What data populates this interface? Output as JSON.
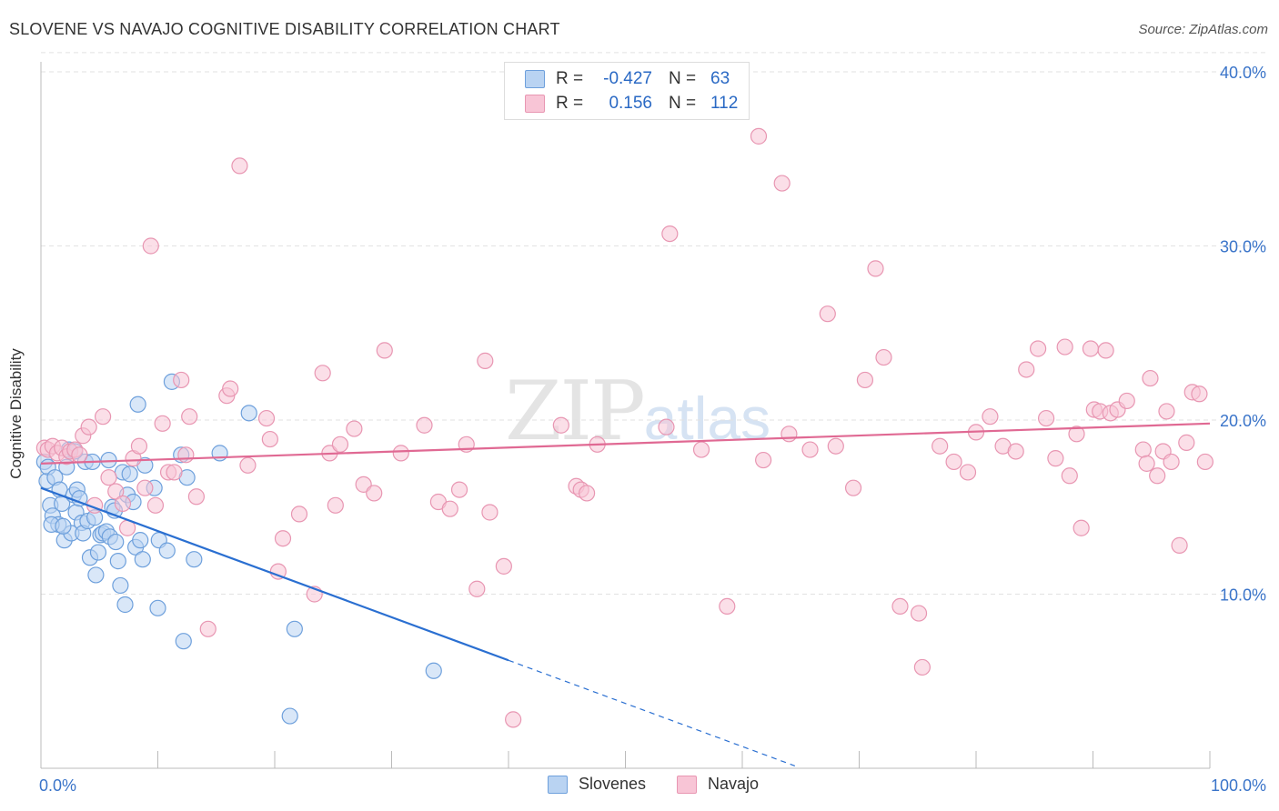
{
  "title": "SLOVENE VS NAVAJO COGNITIVE DISABILITY CORRELATION CHART",
  "source": "Source: ZipAtlas.com",
  "watermark": {
    "zip": "ZIP",
    "atlas": "atlas"
  },
  "legend": {
    "rows": [
      {
        "r_label": "R =",
        "r_value": "-0.427",
        "n_label": "N =",
        "n_value": "63"
      },
      {
        "r_label": "R =",
        "r_value": "0.156",
        "n_label": "N =",
        "n_value": "112"
      }
    ]
  },
  "bottom_legend": [
    "Slovenes",
    "Navajo"
  ],
  "colors": {
    "slovenes_fill": "#b9d3f2",
    "slovenes_stroke": "#6ea0dc",
    "slovenes_line": "#2a6fd1",
    "navajo_fill": "#f8c5d6",
    "navajo_stroke": "#e896b2",
    "navajo_line": "#e06993",
    "tick_label": "#3a74c9",
    "grid": "#e2e2e2"
  },
  "chart_data": {
    "type": "scatter",
    "title": "SLOVENE VS NAVAJO COGNITIVE DISABILITY CORRELATION CHART",
    "xlabel": "",
    "ylabel": "Cognitive Disability",
    "xlim": [
      0,
      100
    ],
    "ylim": [
      0,
      42
    ],
    "x_tick_labels": [
      "0.0%",
      "100.0%"
    ],
    "y_ticks": [
      10,
      20,
      30,
      40
    ],
    "y_tick_labels": [
      "10.0%",
      "20.0%",
      "30.0%",
      "40.0%"
    ],
    "series": [
      {
        "name": "Slovenes",
        "r": -0.427,
        "n": 63,
        "trend": {
          "x0": 0,
          "y0": 16.1,
          "x1": 40,
          "y1": 6.2,
          "dash_to_x": 64.5
        },
        "points": [
          [
            0.3,
            17.6
          ],
          [
            0.5,
            16.5
          ],
          [
            0.6,
            17.3
          ],
          [
            0.8,
            15.1
          ],
          [
            1.0,
            14.5
          ],
          [
            1.2,
            16.7
          ],
          [
            1.5,
            14.0
          ],
          [
            1.6,
            16.0
          ],
          [
            1.8,
            15.2
          ],
          [
            2.0,
            13.1
          ],
          [
            2.2,
            17.3
          ],
          [
            2.4,
            18.3
          ],
          [
            2.6,
            13.5
          ],
          [
            2.8,
            15.7
          ],
          [
            3.0,
            14.7
          ],
          [
            3.1,
            16.0
          ],
          [
            3.3,
            15.5
          ],
          [
            3.5,
            14.1
          ],
          [
            3.6,
            13.5
          ],
          [
            3.8,
            17.6
          ],
          [
            4.0,
            14.2
          ],
          [
            4.2,
            12.1
          ],
          [
            4.4,
            17.6
          ],
          [
            4.6,
            14.4
          ],
          [
            4.7,
            11.1
          ],
          [
            4.9,
            12.4
          ],
          [
            5.1,
            13.4
          ],
          [
            5.3,
            13.5
          ],
          [
            5.6,
            13.6
          ],
          [
            5.8,
            17.7
          ],
          [
            5.9,
            13.3
          ],
          [
            6.1,
            15.0
          ],
          [
            6.3,
            14.8
          ],
          [
            6.4,
            13.0
          ],
          [
            6.6,
            11.9
          ],
          [
            6.8,
            10.5
          ],
          [
            7.0,
            17.0
          ],
          [
            7.2,
            9.4
          ],
          [
            7.4,
            15.7
          ],
          [
            7.6,
            16.9
          ],
          [
            7.9,
            15.3
          ],
          [
            8.1,
            12.7
          ],
          [
            8.3,
            20.9
          ],
          [
            8.5,
            13.1
          ],
          [
            8.7,
            12.0
          ],
          [
            8.9,
            17.4
          ],
          [
            9.7,
            16.1
          ],
          [
            10.0,
            9.2
          ],
          [
            10.1,
            13.1
          ],
          [
            10.8,
            12.5
          ],
          [
            11.2,
            22.2
          ],
          [
            12.0,
            18.0
          ],
          [
            12.2,
            7.3
          ],
          [
            12.5,
            16.7
          ],
          [
            13.1,
            12.0
          ],
          [
            15.3,
            18.1
          ],
          [
            17.8,
            20.4
          ],
          [
            21.3,
            3.0
          ],
          [
            21.7,
            8.0
          ],
          [
            33.6,
            5.6
          ],
          [
            0.9,
            14.0
          ],
          [
            1.9,
            13.9
          ],
          [
            2.9,
            18.2
          ]
        ]
      },
      {
        "name": "Navajo",
        "r": 0.156,
        "n": 112,
        "trend": {
          "x0": 0,
          "y0": 17.5,
          "x1": 100,
          "y1": 19.8
        },
        "points": [
          [
            0.3,
            18.4
          ],
          [
            0.6,
            18.3
          ],
          [
            1.0,
            18.5
          ],
          [
            1.4,
            18.1
          ],
          [
            1.8,
            18.4
          ],
          [
            2.2,
            17.9
          ],
          [
            2.5,
            18.2
          ],
          [
            2.9,
            18.3
          ],
          [
            3.3,
            18.0
          ],
          [
            3.6,
            19.1
          ],
          [
            4.1,
            19.6
          ],
          [
            4.6,
            15.1
          ],
          [
            5.3,
            20.2
          ],
          [
            5.8,
            16.7
          ],
          [
            6.4,
            15.9
          ],
          [
            7.0,
            15.2
          ],
          [
            7.4,
            13.8
          ],
          [
            7.9,
            17.8
          ],
          [
            8.4,
            18.5
          ],
          [
            8.9,
            16.1
          ],
          [
            9.4,
            30.0
          ],
          [
            9.8,
            15.1
          ],
          [
            10.4,
            19.8
          ],
          [
            10.9,
            17.0
          ],
          [
            11.4,
            17.0
          ],
          [
            12.0,
            22.3
          ],
          [
            12.4,
            18.0
          ],
          [
            12.7,
            20.2
          ],
          [
            13.3,
            15.6
          ],
          [
            14.3,
            8.0
          ],
          [
            15.9,
            21.4
          ],
          [
            16.2,
            21.8
          ],
          [
            17.0,
            34.6
          ],
          [
            17.7,
            17.4
          ],
          [
            19.3,
            20.1
          ],
          [
            19.6,
            18.9
          ],
          [
            20.3,
            11.3
          ],
          [
            20.7,
            13.2
          ],
          [
            22.1,
            14.6
          ],
          [
            23.4,
            10.0
          ],
          [
            24.1,
            22.7
          ],
          [
            24.7,
            18.1
          ],
          [
            25.2,
            15.1
          ],
          [
            25.6,
            18.6
          ],
          [
            26.8,
            19.5
          ],
          [
            27.6,
            16.3
          ],
          [
            28.5,
            15.8
          ],
          [
            29.4,
            24.0
          ],
          [
            30.8,
            18.1
          ],
          [
            32.8,
            19.7
          ],
          [
            34.0,
            15.3
          ],
          [
            35.0,
            14.9
          ],
          [
            35.8,
            16.0
          ],
          [
            36.4,
            18.6
          ],
          [
            37.3,
            10.3
          ],
          [
            38.0,
            23.4
          ],
          [
            38.4,
            14.7
          ],
          [
            39.6,
            11.6
          ],
          [
            40.4,
            2.8
          ],
          [
            44.5,
            19.7
          ],
          [
            45.8,
            16.2
          ],
          [
            46.2,
            16.0
          ],
          [
            46.7,
            15.8
          ],
          [
            47.6,
            18.6
          ],
          [
            53.5,
            19.6
          ],
          [
            53.8,
            30.7
          ],
          [
            56.5,
            18.3
          ],
          [
            58.7,
            9.3
          ],
          [
            61.4,
            36.3
          ],
          [
            61.8,
            17.7
          ],
          [
            63.4,
            33.6
          ],
          [
            64.0,
            19.2
          ],
          [
            65.8,
            18.3
          ],
          [
            67.3,
            26.1
          ],
          [
            68.0,
            18.5
          ],
          [
            69.5,
            16.1
          ],
          [
            70.5,
            22.3
          ],
          [
            71.4,
            28.7
          ],
          [
            72.1,
            23.6
          ],
          [
            73.5,
            9.3
          ],
          [
            75.1,
            8.9
          ],
          [
            75.4,
            5.8
          ],
          [
            76.9,
            18.5
          ],
          [
            78.1,
            17.6
          ],
          [
            79.3,
            17.0
          ],
          [
            80.0,
            19.3
          ],
          [
            81.2,
            20.2
          ],
          [
            82.3,
            18.5
          ],
          [
            83.4,
            18.2
          ],
          [
            84.3,
            22.9
          ],
          [
            85.3,
            24.1
          ],
          [
            86.0,
            20.1
          ],
          [
            86.8,
            17.8
          ],
          [
            87.6,
            24.2
          ],
          [
            88.0,
            16.8
          ],
          [
            88.6,
            19.2
          ],
          [
            89.0,
            13.8
          ],
          [
            89.8,
            24.1
          ],
          [
            90.1,
            20.6
          ],
          [
            90.6,
            20.5
          ],
          [
            91.1,
            24.0
          ],
          [
            91.5,
            20.4
          ],
          [
            92.1,
            20.6
          ],
          [
            92.9,
            21.1
          ],
          [
            94.3,
            18.3
          ],
          [
            94.6,
            17.5
          ],
          [
            94.9,
            22.4
          ],
          [
            95.5,
            16.8
          ],
          [
            96.0,
            18.2
          ],
          [
            96.3,
            20.5
          ],
          [
            96.7,
            17.6
          ],
          [
            97.4,
            12.8
          ],
          [
            98.0,
            18.7
          ],
          [
            98.5,
            21.6
          ],
          [
            99.1,
            21.5
          ],
          [
            99.6,
            17.6
          ]
        ]
      }
    ]
  }
}
